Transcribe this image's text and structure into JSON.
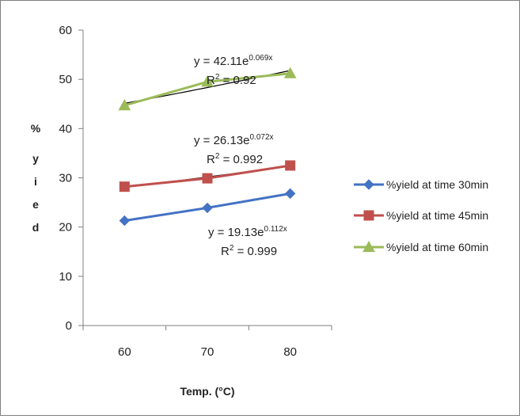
{
  "chart_data": {
    "type": "line",
    "title": "",
    "xlabel": "Temp. (°C)",
    "ylabel_letters": [
      "%",
      "y",
      "i",
      "e",
      "d"
    ],
    "categories": [
      "60",
      "70",
      "80"
    ],
    "x": [
      60,
      70,
      80
    ],
    "ylim": [
      0,
      60
    ],
    "yticks": [
      "0",
      "10",
      "20",
      "30",
      "40",
      "50",
      "60"
    ],
    "grid": false,
    "legend_position": "right",
    "series": [
      {
        "name": "%yield at time 30min",
        "values": [
          21.3,
          23.9,
          26.8
        ],
        "color": "#4472c4",
        "marker": "diamond",
        "trendline": {
          "type": "exponential",
          "a": 19.13,
          "b": 0.112
        },
        "equation": {
          "base": "y = 19.13e",
          "exp": "0.112x",
          "r2_prefix": "R",
          "r2_sup": "2",
          "r2_value": " = 0.999"
        }
      },
      {
        "name": "%yield at time 45min",
        "values": [
          28.2,
          29.9,
          32.5
        ],
        "color": "#c0504d",
        "marker": "square",
        "trendline": {
          "type": "exponential",
          "a": 26.13,
          "b": 0.072
        },
        "equation": {
          "base": "y = 26.13e",
          "exp": "0.072x",
          "r2_prefix": "R",
          "r2_sup": "2",
          "r2_value": " = 0.992"
        }
      },
      {
        "name": "%yield at time 60min",
        "values": [
          44.7,
          49.5,
          51.2
        ],
        "color": "#9bbb59",
        "marker": "triangle",
        "trendline": {
          "type": "exponential",
          "a": 42.11,
          "b": 0.069
        },
        "equation": {
          "base": "y = 42.11e",
          "exp": "0.069x",
          "r2_prefix": "R",
          "r2_sup": "2",
          "r2_value": " = 0.92"
        }
      }
    ]
  }
}
